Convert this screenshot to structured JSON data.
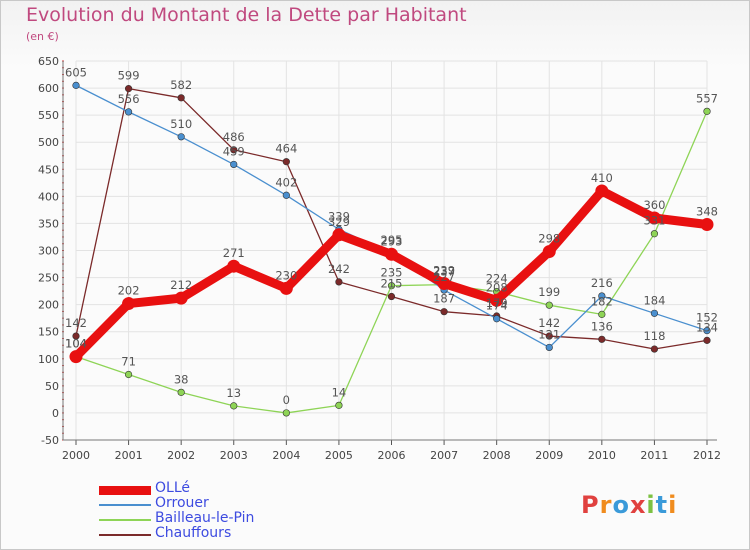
{
  "header": {
    "title": "Evolution du Montant de la Dette par Habitant",
    "unit": "(en €)"
  },
  "logo": {
    "text": "Proxiti",
    "colors": [
      "#e0413f",
      "#f08c1e",
      "#3a9ad9",
      "#e0413f",
      "#7cc142",
      "#3a9ad9",
      "#f08c1e"
    ]
  },
  "chart_data": {
    "type": "line",
    "title": "Evolution du Montant de la Dette par Habitant",
    "ylabel": "(en €)",
    "xlabel": "",
    "x": [
      "2000",
      "2001",
      "2002",
      "2003",
      "2004",
      "2005",
      "2006",
      "2007",
      "2008",
      "2009",
      "2010",
      "2011",
      "2012"
    ],
    "ylim": [
      -50,
      650
    ],
    "yticks": [
      -50,
      0,
      50,
      100,
      150,
      200,
      250,
      300,
      350,
      400,
      450,
      500,
      550,
      600,
      650
    ],
    "grid": true,
    "legend_position": "bottom-left",
    "series": [
      {
        "name": "OLLé",
        "color": "#e81010",
        "values": [
          104,
          202,
          212,
          271,
          230,
          329,
          293,
          239,
          208,
          298,
          410,
          360,
          348
        ],
        "labels": [
          "104",
          "202",
          "212",
          "271",
          "230",
          "329",
          "293",
          "239",
          "208",
          "298",
          "410",
          "360",
          "348"
        ]
      },
      {
        "name": "Orrouer",
        "color": "#4a8fcf",
        "values": [
          605,
          556,
          510,
          459,
          402,
          339,
          295,
          227,
          174,
          121,
          216,
          184,
          152
        ],
        "labels": [
          "605",
          "556",
          "510",
          "459",
          "402",
          "339",
          "295",
          "227",
          "174",
          "121",
          "216",
          "184",
          "152"
        ]
      },
      {
        "name": "Bailleau-le-Pin",
        "color": "#8ed456",
        "values": [
          104,
          71,
          38,
          13,
          0,
          14,
          235,
          237,
          224,
          199,
          182,
          331,
          557
        ],
        "labels": [
          "104",
          "71",
          "38",
          "13",
          "0",
          "14",
          "235",
          "237",
          "224",
          "199",
          "182",
          "331",
          "557"
        ]
      },
      {
        "name": "Chauffours",
        "color": "#7b2a2a",
        "values": [
          142,
          599,
          582,
          486,
          464,
          242,
          215,
          187,
          179,
          142,
          136,
          118,
          134
        ],
        "labels": [
          "142",
          "599",
          "582",
          "486",
          "464",
          "242",
          "215",
          "187",
          "179",
          "142",
          "136",
          "118",
          "134"
        ]
      }
    ]
  }
}
